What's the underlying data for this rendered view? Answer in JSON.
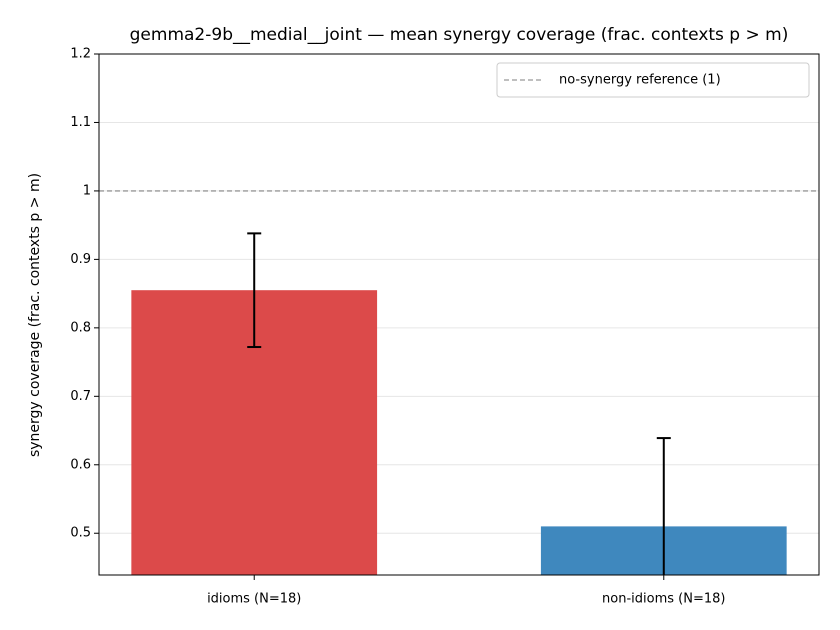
{
  "chart_data": {
    "type": "bar",
    "title": "gemma2-9b__medial__joint — mean synergy coverage  (frac. contexts p > m)",
    "y_label": "synergy coverage  (frac. contexts p > m)",
    "categories": [
      "idioms (N=18)",
      "non-idioms (N=18)"
    ],
    "values": [
      0.855,
      0.51
    ],
    "errors": [
      0.083,
      0.129
    ],
    "colors": [
      "#dc4a4a",
      "#3f88be"
    ],
    "ylim": [
      0.439,
      1.2
    ],
    "yticks": [
      0.5,
      0.6,
      0.7,
      0.8,
      0.9,
      1.0,
      1.1,
      1.2
    ],
    "reference": {
      "value": 1,
      "label": "no-synergy reference (1)"
    },
    "grid": true,
    "legend": "upper right"
  }
}
